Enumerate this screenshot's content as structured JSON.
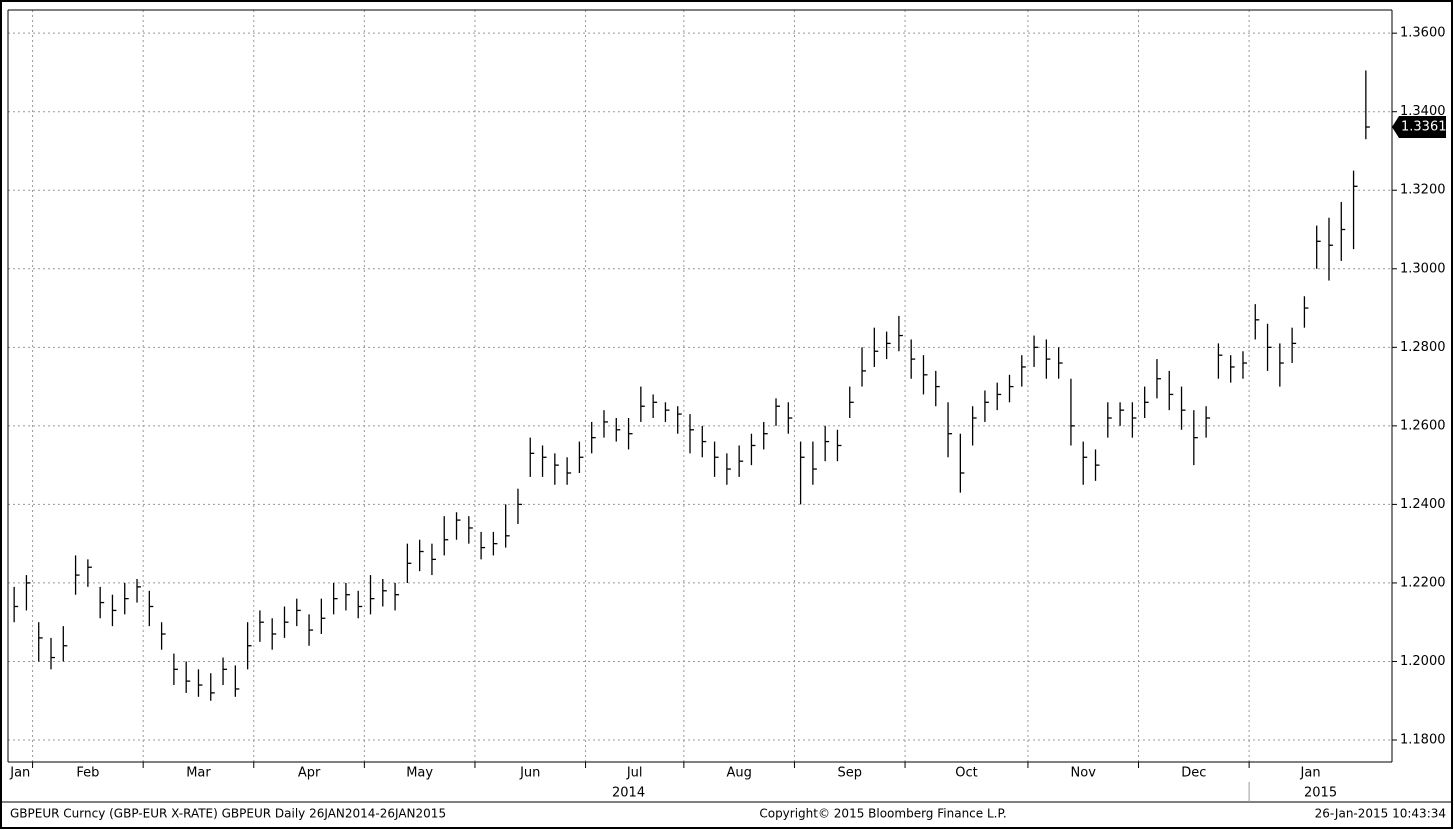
{
  "chart_data": {
    "type": "ohlc",
    "footer_left": "GBPEUR Curncy (GBP-EUR X-RATE) GBPEUR  Daily 26JAN2014-26JAN2015",
    "footer_center": "Copyright© 2015 Bloomberg Finance L.P.",
    "footer_right": "26-Jan-2015 10:43:34",
    "color": "#000000",
    "grid": true,
    "ylim": [
      1.1744,
      1.3659
    ],
    "yticks": [
      {
        "value": 1.18,
        "label": "1.1800"
      },
      {
        "value": 1.2,
        "label": "1.2000"
      },
      {
        "value": 1.22,
        "label": "1.2200"
      },
      {
        "value": 1.24,
        "label": "1.2400"
      },
      {
        "value": 1.26,
        "label": "1.2600"
      },
      {
        "value": 1.28,
        "label": "1.2800"
      },
      {
        "value": 1.3,
        "label": "1.3000"
      },
      {
        "value": 1.32,
        "label": "1.3200"
      },
      {
        "value": 1.34,
        "label": "1.3400"
      },
      {
        "value": 1.36,
        "label": "1.3600"
      }
    ],
    "years": [
      "2014",
      "2015"
    ],
    "categories": [
      "Jan",
      null,
      "Feb",
      null,
      null,
      null,
      null,
      null,
      null,
      null,
      null,
      "Mar",
      null,
      null,
      null,
      null,
      null,
      null,
      null,
      null,
      "Apr",
      null,
      null,
      null,
      null,
      null,
      null,
      null,
      null,
      "May",
      null,
      null,
      null,
      null,
      null,
      null,
      null,
      null,
      "Jun",
      null,
      null,
      null,
      null,
      null,
      null,
      null,
      null,
      "Jul",
      null,
      null,
      null,
      null,
      null,
      null,
      null,
      "Aug",
      null,
      null,
      null,
      null,
      null,
      null,
      null,
      null,
      "Sep",
      null,
      null,
      null,
      null,
      null,
      null,
      null,
      null,
      "Oct",
      null,
      null,
      null,
      null,
      null,
      null,
      null,
      null,
      null,
      "Nov",
      null,
      null,
      null,
      null,
      null,
      null,
      null,
      null,
      "Dec",
      null,
      null,
      null,
      null,
      null,
      null,
      null,
      null,
      "Jan",
      null,
      null,
      null,
      null,
      null,
      null,
      null,
      null,
      null
    ],
    "high": [
      1.219,
      1.222,
      1.21,
      1.206,
      1.209,
      1.227,
      1.226,
      1.219,
      1.217,
      1.22,
      1.221,
      1.218,
      1.21,
      1.202,
      1.2,
      1.198,
      1.197,
      1.201,
      1.199,
      1.21,
      1.213,
      1.211,
      1.214,
      1.216,
      1.212,
      1.216,
      1.22,
      1.22,
      1.218,
      1.222,
      1.221,
      1.22,
      1.23,
      1.231,
      1.23,
      1.237,
      1.238,
      1.237,
      1.233,
      1.233,
      1.24,
      1.244,
      1.257,
      1.255,
      1.253,
      1.252,
      1.256,
      1.261,
      1.264,
      1.262,
      1.262,
      1.27,
      1.268,
      1.266,
      1.265,
      1.263,
      1.26,
      1.256,
      1.253,
      1.255,
      1.258,
      1.261,
      1.267,
      1.266,
      1.256,
      1.256,
      1.26,
      1.259,
      1.27,
      1.28,
      1.285,
      1.284,
      1.288,
      1.282,
      1.278,
      1.274,
      1.266,
      1.258,
      1.265,
      1.269,
      1.271,
      1.273,
      1.278,
      1.283,
      1.282,
      1.28,
      1.272,
      1.256,
      1.254,
      1.266,
      1.266,
      1.266,
      1.27,
      1.277,
      1.274,
      1.27,
      1.264,
      1.265,
      1.281,
      1.278,
      1.279,
      1.291,
      1.286,
      1.281,
      1.285,
      1.293,
      1.311,
      1.313,
      1.317,
      1.325,
      1.3505
    ],
    "low": [
      1.21,
      1.213,
      1.2,
      1.198,
      1.2,
      1.217,
      1.219,
      1.211,
      1.209,
      1.212,
      1.215,
      1.209,
      1.203,
      1.194,
      1.192,
      1.191,
      1.19,
      1.194,
      1.191,
      1.198,
      1.205,
      1.203,
      1.206,
      1.209,
      1.204,
      1.207,
      1.212,
      1.213,
      1.211,
      1.212,
      1.214,
      1.213,
      1.22,
      1.223,
      1.222,
      1.227,
      1.231,
      1.23,
      1.226,
      1.227,
      1.229,
      1.235,
      1.247,
      1.247,
      1.245,
      1.245,
      1.248,
      1.253,
      1.257,
      1.256,
      1.254,
      1.261,
      1.262,
      1.261,
      1.258,
      1.253,
      1.252,
      1.247,
      1.245,
      1.247,
      1.25,
      1.254,
      1.26,
      1.258,
      1.24,
      1.245,
      1.251,
      1.251,
      1.262,
      1.27,
      1.275,
      1.277,
      1.279,
      1.272,
      1.268,
      1.265,
      1.252,
      1.243,
      1.255,
      1.261,
      1.264,
      1.266,
      1.27,
      1.275,
      1.272,
      1.272,
      1.255,
      1.245,
      1.246,
      1.257,
      1.26,
      1.257,
      1.262,
      1.267,
      1.264,
      1.259,
      1.25,
      1.257,
      1.272,
      1.271,
      1.272,
      1.282,
      1.274,
      1.27,
      1.276,
      1.285,
      1.3,
      1.297,
      1.302,
      1.305,
      1.333
    ],
    "close": [
      1.214,
      1.22,
      1.206,
      1.201,
      1.204,
      1.222,
      1.224,
      1.215,
      1.213,
      1.216,
      1.219,
      1.214,
      1.207,
      1.198,
      1.195,
      1.194,
      1.192,
      1.198,
      1.193,
      1.204,
      1.21,
      1.207,
      1.21,
      1.213,
      1.208,
      1.211,
      1.216,
      1.217,
      1.214,
      1.216,
      1.218,
      1.217,
      1.225,
      1.228,
      1.226,
      1.231,
      1.236,
      1.234,
      1.229,
      1.23,
      1.232,
      1.24,
      1.253,
      1.252,
      1.25,
      1.248,
      1.252,
      1.257,
      1.261,
      1.259,
      1.258,
      1.265,
      1.266,
      1.264,
      1.263,
      1.259,
      1.256,
      1.252,
      1.249,
      1.251,
      1.255,
      1.258,
      1.265,
      1.262,
      1.252,
      1.249,
      1.256,
      1.255,
      1.266,
      1.274,
      1.279,
      1.281,
      1.283,
      1.277,
      1.273,
      1.27,
      1.258,
      1.248,
      1.262,
      1.266,
      1.268,
      1.27,
      1.275,
      1.28,
      1.277,
      1.276,
      1.26,
      1.252,
      1.25,
      1.262,
      1.264,
      1.262,
      1.266,
      1.272,
      1.268,
      1.264,
      1.257,
      1.262,
      1.278,
      1.275,
      1.276,
      1.287,
      1.28,
      1.276,
      1.281,
      1.29,
      1.307,
      1.306,
      1.31,
      1.321,
      1.3361
    ]
  }
}
